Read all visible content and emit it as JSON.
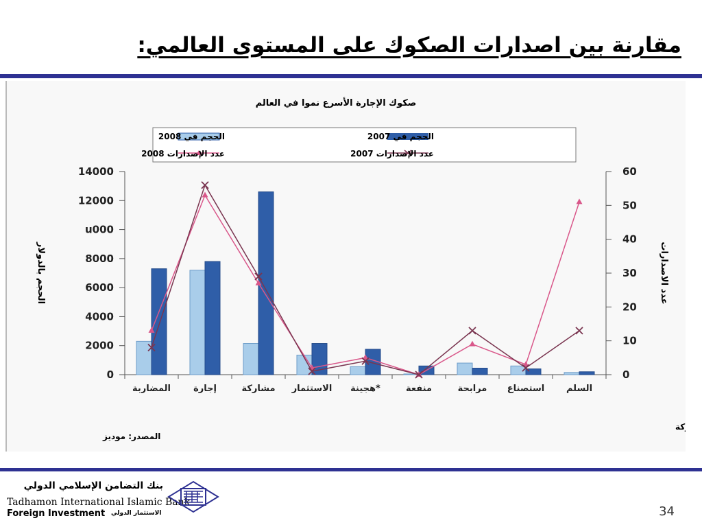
{
  "slide": {
    "title": "مقارنة بين اصدارات الصكوك على المستوى العالمي:",
    "page_number": "34"
  },
  "footer": {
    "bank_name_ar": "بنك التضامن الإسلامي الدولي",
    "bank_name_en": "Tadhamon International Islamic Bank",
    "foreign_investment_en": "Foreign Investment",
    "foreign_investment_ar": "الاستثمار الدولي"
  },
  "colors": {
    "rule": "#2e3192",
    "bar_2008": "#a9cdea",
    "bar_2007": "#2f5ea8",
    "line_2008": "#d9578a",
    "line_2007": "#7a3550",
    "logo": "#2e3192"
  },
  "chart_data": {
    "type": "bar",
    "title": "صكوك الإجارة الأسرع نموا في العالم",
    "categories": [
      "المضاربة",
      "إجارة",
      "مشاركة",
      "الاستثمار",
      "*هجينة",
      "منفعة",
      "مرابحة",
      "استصناع",
      "السلم"
    ],
    "series": [
      {
        "name": "الحجم في 2008",
        "kind": "bar",
        "axis": "left",
        "values": [
          2300,
          7200,
          2150,
          1350,
          550,
          50,
          800,
          600,
          150
        ]
      },
      {
        "name": "الحجم في 2007",
        "kind": "bar",
        "axis": "left",
        "values": [
          7300,
          7800,
          12600,
          2150,
          1750,
          600,
          450,
          400,
          200
        ]
      },
      {
        "name": "عدد الإصدارات 2008",
        "kind": "line",
        "axis": "right",
        "marker": "triangle",
        "values": [
          13,
          53,
          27,
          2,
          5,
          0,
          9,
          3,
          51
        ]
      },
      {
        "name": "عدد الإصدارات 2007",
        "kind": "line",
        "axis": "right",
        "marker": "x",
        "values": [
          8,
          56,
          29,
          1,
          4,
          0,
          13,
          2,
          13
        ]
      }
    ],
    "ylim": [
      0,
      14000
    ],
    "yticks": [
      "0",
      "2000",
      "4000",
      "6000",
      "8000",
      "u000",
      "12000",
      "14000"
    ],
    "y2lim": [
      0,
      60
    ],
    "y2ticks": [
      "0",
      "10",
      "20",
      "30",
      "40",
      "50",
      "60"
    ],
    "ylabel": "الحجم بالدولار",
    "y2label": "عدد الاصدارات",
    "legend_position": "top",
    "grid": false,
    "footnote": "*هجينة تعني خلط هيلكة المرابحة وهيكلة المشاركة",
    "source": "المصدر: موديز"
  }
}
